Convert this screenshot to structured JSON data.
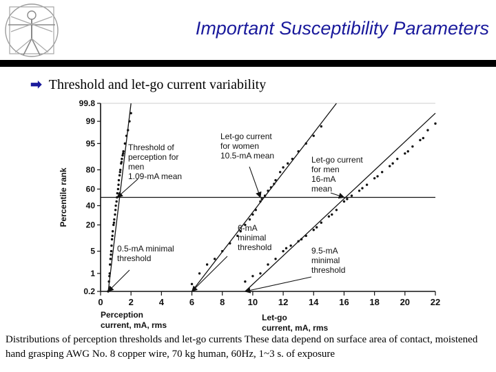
{
  "slide": {
    "title": "Important Susceptibility Parameters",
    "bullet": "Threshold and let-go current variability",
    "bullet_icon": "arrow-bullet-icon",
    "logo_icon": "vitruvian-man-icon",
    "caption": "Distributions of perception thresholds and let-go currents These data depend on surface area of contact, moistened hand grasping AWG No. 8 copper wire, 70 kg human, 60Hz, 1~3 s. of exposure",
    "colors": {
      "title": "#1a1a9c",
      "rule": "#000000",
      "ink": "#111111"
    }
  },
  "chart_data": {
    "type": "scatter",
    "ylabel": "Percentile rank",
    "x_ticks": [
      "0",
      "2",
      "4",
      "6",
      "8",
      "10",
      "12",
      "14",
      "16",
      "18",
      "20",
      "22"
    ],
    "y_ticks": [
      "99.8",
      "99",
      "95",
      "80",
      "60",
      "40",
      "20",
      "5",
      "1",
      "0.2"
    ],
    "xlim": [
      0,
      22
    ],
    "ylim": [
      0.2,
      99.8
    ],
    "y_scale": "probability",
    "x_axis_labels": {
      "perception": "Perception\ncurrent, mA, rms",
      "letgo": "Let-go\ncurrent, mA, rms"
    },
    "reference_line_percentile": 50,
    "series": [
      {
        "key": "perception_men",
        "fit": [
          [
            0.5,
            0.2
          ],
          [
            2.0,
            99.8
          ]
        ],
        "points": [
          [
            0.5,
            0.2
          ],
          [
            0.55,
            0.5
          ],
          [
            0.6,
            1
          ],
          [
            0.62,
            2
          ],
          [
            0.65,
            3
          ],
          [
            0.7,
            5
          ],
          [
            0.72,
            7
          ],
          [
            0.75,
            10
          ],
          [
            0.8,
            15
          ],
          [
            0.85,
            20
          ],
          [
            0.9,
            25
          ],
          [
            0.95,
            30
          ],
          [
            1.0,
            40
          ],
          [
            1.05,
            45
          ],
          [
            1.1,
            55
          ],
          [
            1.15,
            60
          ],
          [
            1.2,
            70
          ],
          [
            1.25,
            75
          ],
          [
            1.3,
            80
          ],
          [
            1.35,
            85
          ],
          [
            1.4,
            88
          ],
          [
            1.45,
            90
          ],
          [
            1.5,
            92
          ],
          [
            1.6,
            95
          ],
          [
            1.7,
            97
          ],
          [
            1.8,
            98
          ],
          [
            1.9,
            99
          ],
          [
            2.0,
            99.5
          ],
          [
            0.58,
            0.8
          ],
          [
            0.68,
            4
          ],
          [
            0.78,
            12
          ],
          [
            0.88,
            22
          ],
          [
            0.98,
            35
          ],
          [
            1.08,
            50
          ],
          [
            1.18,
            65
          ],
          [
            1.28,
            78
          ],
          [
            1.38,
            86
          ],
          [
            1.48,
            91
          ]
        ]
      },
      {
        "key": "letgo_women",
        "fit": [
          [
            6.0,
            0.2
          ],
          [
            15.5,
            99.8
          ]
        ],
        "points": [
          [
            6.0,
            0.4
          ],
          [
            6.5,
            1
          ],
          [
            7.0,
            2
          ],
          [
            7.5,
            3
          ],
          [
            8.0,
            5
          ],
          [
            8.5,
            8
          ],
          [
            9.0,
            12
          ],
          [
            9.5,
            20
          ],
          [
            9.8,
            25
          ],
          [
            10.0,
            30
          ],
          [
            10.2,
            35
          ],
          [
            10.5,
            45
          ],
          [
            10.8,
            52
          ],
          [
            11.0,
            58
          ],
          [
            11.2,
            62
          ],
          [
            11.5,
            70
          ],
          [
            11.8,
            78
          ],
          [
            12.0,
            82
          ],
          [
            12.3,
            85
          ],
          [
            12.6,
            88
          ],
          [
            13.0,
            92
          ],
          [
            13.5,
            95
          ],
          [
            14.0,
            97
          ],
          [
            14.5,
            98.5
          ],
          [
            9.2,
            15
          ],
          [
            10.6,
            48
          ],
          [
            11.4,
            66
          ]
        ]
      },
      {
        "key": "letgo_men",
        "fit": [
          [
            9.5,
            0.2
          ],
          [
            22.0,
            99.5
          ]
        ],
        "points": [
          [
            9.5,
            0.5
          ],
          [
            10.0,
            0.8
          ],
          [
            10.5,
            1
          ],
          [
            11.0,
            2
          ],
          [
            11.5,
            3
          ],
          [
            12.0,
            5
          ],
          [
            12.5,
            7
          ],
          [
            13.0,
            9
          ],
          [
            13.5,
            12
          ],
          [
            14.0,
            16
          ],
          [
            14.5,
            22
          ],
          [
            15.0,
            28
          ],
          [
            15.5,
            35
          ],
          [
            16.0,
            45
          ],
          [
            16.5,
            52
          ],
          [
            17.0,
            58
          ],
          [
            17.5,
            65
          ],
          [
            18.0,
            72
          ],
          [
            18.5,
            78
          ],
          [
            19.0,
            83
          ],
          [
            19.5,
            88
          ],
          [
            20.0,
            91
          ],
          [
            20.5,
            94
          ],
          [
            21.0,
            96
          ],
          [
            21.5,
            98
          ],
          [
            22.0,
            98.8
          ],
          [
            12.2,
            6
          ],
          [
            13.2,
            10
          ],
          [
            14.2,
            18
          ],
          [
            15.2,
            30
          ],
          [
            16.2,
            48
          ],
          [
            17.2,
            61
          ],
          [
            18.2,
            74
          ],
          [
            19.2,
            85
          ],
          [
            20.2,
            92
          ],
          [
            21.2,
            96.5
          ]
        ]
      }
    ],
    "annotations": [
      {
        "key": "ann_perception",
        "lines": [
          "Threshold of",
          "perception for",
          "men",
          "1.09-mA mean"
        ],
        "arrow_to": [
          1.1,
          50
        ]
      },
      {
        "key": "ann_women",
        "lines": [
          "Let-go current",
          "for women",
          "10.5-mA mean"
        ],
        "arrow_to": [
          10.5,
          50
        ]
      },
      {
        "key": "ann_men",
        "lines": [
          "Let-go current",
          "for men",
          "16-mA",
          "mean"
        ],
        "arrow_to": [
          16.0,
          50
        ]
      },
      {
        "key": "ann_min05",
        "lines": [
          "0.5-mA  minimal",
          "threshold"
        ],
        "arrow_to": [
          0.5,
          0.2
        ]
      },
      {
        "key": "ann_min6",
        "lines": [
          "6-mA",
          "minimal",
          "threshold"
        ],
        "arrow_to": [
          6.0,
          0.2
        ]
      },
      {
        "key": "ann_min95",
        "lines": [
          "9.5-mA",
          "minimal",
          "threshold"
        ],
        "arrow_to": [
          9.5,
          0.2
        ]
      }
    ]
  }
}
